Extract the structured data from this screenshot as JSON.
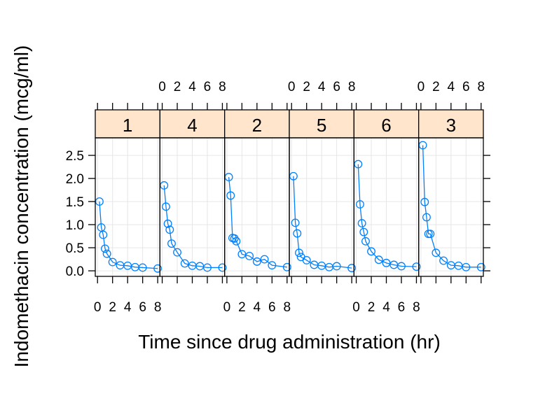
{
  "chart_data": {
    "type": "line",
    "xlabel": "Time since drug administration (hr)",
    "ylabel": "Indomethacin concentration (mcg/ml)",
    "xlim": [
      -0.3,
      8.3
    ],
    "ylim": [
      -0.12,
      2.88
    ],
    "x_ticks": [
      0,
      2,
      4,
      6,
      8
    ],
    "y_ticks": [
      "0.0",
      "0.5",
      "1.0",
      "1.5",
      "2.0",
      "2.5"
    ],
    "grid": true,
    "line_color": "#0080ff",
    "strip_color": "#ffe5cc",
    "x": [
      0.25,
      0.5,
      0.75,
      1,
      1.25,
      2,
      3,
      4,
      5,
      6,
      8
    ],
    "panels": [
      {
        "subject": "1",
        "values": [
          1.5,
          0.94,
          0.78,
          0.48,
          0.37,
          0.19,
          0.12,
          0.11,
          0.08,
          0.07,
          0.05
        ]
      },
      {
        "subject": "4",
        "values": [
          1.85,
          1.39,
          1.02,
          0.89,
          0.59,
          0.4,
          0.16,
          0.11,
          0.1,
          0.07,
          0.07
        ]
      },
      {
        "subject": "2",
        "values": [
          2.03,
          1.63,
          0.71,
          0.7,
          0.64,
          0.36,
          0.32,
          0.2,
          0.25,
          0.12,
          0.08
        ]
      },
      {
        "subject": "5",
        "values": [
          2.05,
          1.04,
          0.81,
          0.39,
          0.3,
          0.23,
          0.13,
          0.11,
          0.08,
          0.1,
          0.06
        ]
      },
      {
        "subject": "6",
        "values": [
          2.31,
          1.44,
          1.03,
          0.84,
          0.64,
          0.42,
          0.24,
          0.17,
          0.13,
          0.1,
          0.09
        ]
      },
      {
        "subject": "3",
        "values": [
          2.72,
          1.49,
          1.16,
          0.8,
          0.8,
          0.39,
          0.22,
          0.12,
          0.11,
          0.08,
          0.08
        ]
      }
    ]
  }
}
